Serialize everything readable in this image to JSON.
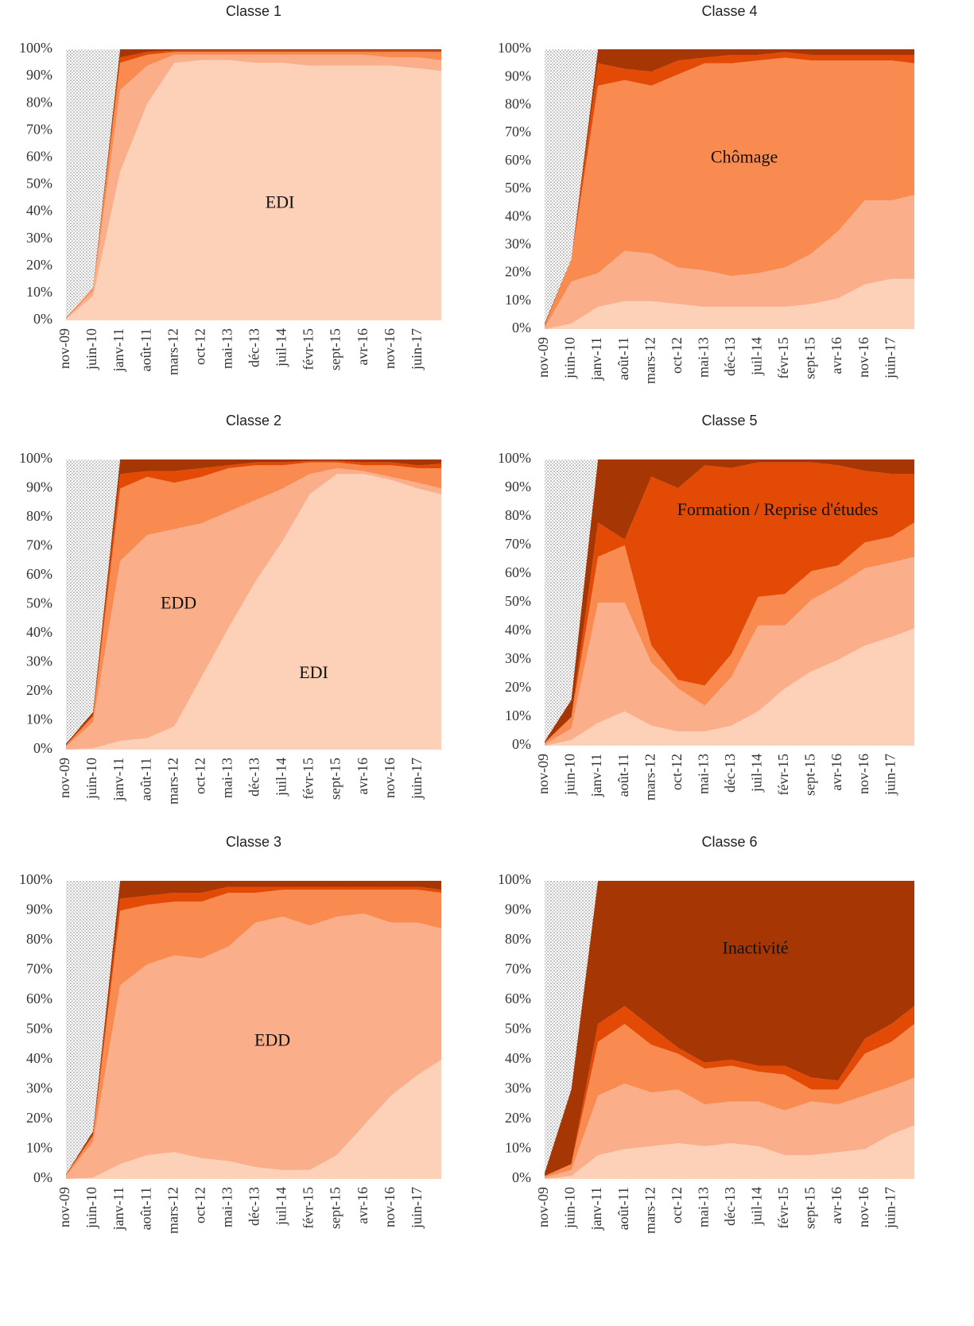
{
  "chart_data": [
    {
      "type": "stacked_area",
      "title": "Classe 1",
      "annotations": [
        "EDI"
      ],
      "categories": [
        "nov-09",
        "juin-10",
        "janv-11",
        "août-11",
        "mars-12",
        "oct-12",
        "mai-13",
        "déc-13",
        "juil-14",
        "févr-15",
        "sept-15",
        "avr-16",
        "nov-16",
        "juin-17",
        null
      ],
      "ylim": [
        0,
        100
      ],
      "yticks": [
        {
          "value": 0,
          "label": "0%"
        },
        {
          "value": 10,
          "label": "10%"
        },
        {
          "value": 20,
          "label": "20%"
        },
        {
          "value": 30,
          "label": "30%"
        },
        {
          "value": 40,
          "label": "40%"
        },
        {
          "value": 50,
          "label": "50%"
        },
        {
          "value": 60,
          "label": "60%"
        },
        {
          "value": 70,
          "label": "70%"
        },
        {
          "value": 80,
          "label": "80%"
        },
        {
          "value": 90,
          "label": "90%"
        },
        {
          "value": 100,
          "label": "100%"
        }
      ],
      "series": [
        {
          "color": "#fdd0b8",
          "values": [
            0.5,
            9,
            55,
            80,
            95,
            96,
            96,
            95,
            95,
            94,
            94,
            94,
            94,
            93,
            92
          ]
        },
        {
          "color": "#fbae8a",
          "values": [
            0.2,
            2,
            30,
            14,
            3,
            2,
            2,
            3,
            3,
            4,
            4,
            4,
            3,
            4,
            4
          ]
        },
        {
          "color": "#f98b50",
          "values": [
            0.2,
            1,
            10,
            4,
            1,
            1,
            1,
            1,
            1,
            1,
            1,
            1,
            2,
            2,
            3
          ]
        },
        {
          "color": "#e34a05",
          "values": [
            0,
            0,
            2,
            1,
            0.5,
            0.5,
            0.5,
            0.5,
            0.5,
            0.5,
            0.5,
            0.5,
            0.5,
            0.5,
            0.5
          ]
        },
        {
          "color": "#a63603",
          "values": [
            0.1,
            0,
            3,
            1,
            0.5,
            0.5,
            0.5,
            0.5,
            0.5,
            0.5,
            0.5,
            0.5,
            0.5,
            0.5,
            0.5
          ]
        }
      ]
    },
    {
      "type": "stacked_area",
      "title": "Classe 2",
      "annotations": [
        "EDD",
        "EDI"
      ],
      "categories": [
        "nov-09",
        "juin-10",
        "janv-11",
        "août-11",
        "mars-12",
        "oct-12",
        "mai-13",
        "déc-13",
        "juil-14",
        "févr-15",
        "sept-15",
        "avr-16",
        "nov-16",
        "juin-17",
        null
      ],
      "ylim": [
        0,
        100
      ],
      "yticks": [
        {
          "value": 0,
          "label": "0%"
        },
        {
          "value": 10,
          "label": "10%"
        },
        {
          "value": 20,
          "label": "20%"
        },
        {
          "value": 30,
          "label": "30%"
        },
        {
          "value": 40,
          "label": "40%"
        },
        {
          "value": 50,
          "label": "50%"
        },
        {
          "value": 60,
          "label": "60%"
        },
        {
          "value": 70,
          "label": "70%"
        },
        {
          "value": 80,
          "label": "80%"
        },
        {
          "value": 90,
          "label": "90%"
        },
        {
          "value": 100,
          "label": "100%"
        }
      ],
      "series": [
        {
          "color": "#fdd0b8",
          "values": [
            0,
            0.5,
            3,
            4,
            8,
            25,
            42,
            58,
            72,
            88,
            95,
            95,
            93,
            90,
            88
          ]
        },
        {
          "color": "#fbae8a",
          "values": [
            1,
            9,
            62,
            70,
            68,
            53,
            40,
            28,
            18,
            7,
            2,
            1,
            1,
            2,
            2
          ]
        },
        {
          "color": "#f98b50",
          "values": [
            0.5,
            2,
            25,
            20,
            16,
            16,
            15,
            12,
            8,
            4,
            2,
            2,
            4,
            5,
            7
          ]
        },
        {
          "color": "#e34a05",
          "values": [
            0,
            0.5,
            5,
            2,
            4,
            3,
            1,
            1,
            1,
            0.5,
            0.5,
            1,
            1,
            1,
            1.5
          ]
        },
        {
          "color": "#a63603",
          "values": [
            0.5,
            1,
            5,
            4,
            4,
            3,
            2,
            1,
            1,
            0.5,
            0.5,
            1,
            1,
            2,
            1.5
          ]
        }
      ]
    },
    {
      "type": "stacked_area",
      "title": "Classe 3",
      "annotations": [
        "EDD"
      ],
      "categories": [
        "nov-09",
        "juin-10",
        "janv-11",
        "août-11",
        "mars-12",
        "oct-12",
        "mai-13",
        "déc-13",
        "juil-14",
        "févr-15",
        "sept-15",
        "avr-16",
        "nov-16",
        "juin-17",
        null
      ],
      "ylim": [
        0,
        100
      ],
      "yticks": [
        {
          "value": 0,
          "label": "0%"
        },
        {
          "value": 10,
          "label": "10%"
        },
        {
          "value": 20,
          "label": "20%"
        },
        {
          "value": 30,
          "label": "30%"
        },
        {
          "value": 40,
          "label": "40%"
        },
        {
          "value": 50,
          "label": "50%"
        },
        {
          "value": 60,
          "label": "60%"
        },
        {
          "value": 70,
          "label": "70%"
        },
        {
          "value": 80,
          "label": "80%"
        },
        {
          "value": 90,
          "label": "90%"
        },
        {
          "value": 100,
          "label": "100%"
        }
      ],
      "series": [
        {
          "color": "#fdd0b8",
          "values": [
            0,
            0.5,
            5,
            8,
            9,
            7,
            6,
            4,
            3,
            3,
            8,
            18,
            28,
            35,
            40
          ]
        },
        {
          "color": "#fbae8a",
          "values": [
            1,
            12,
            60,
            64,
            66,
            67,
            72,
            82,
            85,
            82,
            80,
            71,
            58,
            51,
            44
          ]
        },
        {
          "color": "#f98b50",
          "values": [
            0.3,
            2,
            25,
            20,
            18,
            19,
            18,
            10,
            9,
            12,
            9,
            8,
            11,
            11,
            12
          ]
        },
        {
          "color": "#e34a05",
          "values": [
            0,
            0.5,
            4,
            3,
            3,
            3,
            2,
            2,
            1,
            1,
            1,
            1,
            1,
            1,
            1
          ]
        },
        {
          "color": "#a63603",
          "values": [
            0.2,
            1,
            6,
            5,
            4,
            4,
            2,
            2,
            2,
            2,
            2,
            2,
            2,
            2,
            3
          ]
        }
      ]
    },
    {
      "type": "stacked_area",
      "title": "Classe 4",
      "annotations": [
        "Chômage"
      ],
      "categories": [
        "nov-09",
        "juin-10",
        "janv-11",
        "août-11",
        "mars-12",
        "oct-12",
        "mai-13",
        "déc-13",
        "juil-14",
        "févr-15",
        "sept-15",
        "avr-16",
        "nov-16",
        "juin-17",
        null
      ],
      "ylim": [
        0,
        100
      ],
      "yticks": [
        {
          "value": 0,
          "label": "0%"
        },
        {
          "value": 10,
          "label": "10%"
        },
        {
          "value": 20,
          "label": "20%"
        },
        {
          "value": 30,
          "label": "30%"
        },
        {
          "value": 40,
          "label": "40%"
        },
        {
          "value": 50,
          "label": "50%"
        },
        {
          "value": 60,
          "label": "60%"
        },
        {
          "value": 70,
          "label": "70%"
        },
        {
          "value": 80,
          "label": "80%"
        },
        {
          "value": 90,
          "label": "90%"
        },
        {
          "value": 100,
          "label": "100%"
        }
      ],
      "series": [
        {
          "color": "#fdd0b8",
          "values": [
            0,
            2,
            8,
            10,
            10,
            9,
            8,
            8,
            8,
            8,
            9,
            11,
            16,
            18,
            18
          ]
        },
        {
          "color": "#fbae8a",
          "values": [
            0.5,
            15,
            12,
            18,
            17,
            13,
            13,
            11,
            12,
            14,
            18,
            24,
            30,
            28,
            30
          ]
        },
        {
          "color": "#f98b50",
          "values": [
            1,
            8,
            67,
            61,
            60,
            69,
            74,
            76,
            76,
            75,
            69,
            61,
            50,
            50,
            47
          ]
        },
        {
          "color": "#e34a05",
          "values": [
            0,
            0,
            8,
            4,
            5,
            5,
            2,
            3,
            2,
            2,
            2,
            2,
            2,
            2,
            3
          ]
        },
        {
          "color": "#a63603",
          "values": [
            0.5,
            0,
            5,
            7,
            8,
            4,
            3,
            2,
            2,
            1,
            2,
            2,
            2,
            2,
            2
          ]
        }
      ]
    },
    {
      "type": "stacked_area",
      "title": "Classe 5",
      "annotations": [
        "Formation / Reprise d'études"
      ],
      "categories": [
        "nov-09",
        "juin-10",
        "janv-11",
        "août-11",
        "mars-12",
        "oct-12",
        "mai-13",
        "déc-13",
        "juil-14",
        "févr-15",
        "sept-15",
        "avr-16",
        "nov-16",
        "juin-17",
        null
      ],
      "ylim": [
        0,
        100
      ],
      "yticks": [
        {
          "value": 0,
          "label": "0%"
        },
        {
          "value": 10,
          "label": "10%"
        },
        {
          "value": 20,
          "label": "20%"
        },
        {
          "value": 30,
          "label": "30%"
        },
        {
          "value": 40,
          "label": "40%"
        },
        {
          "value": 50,
          "label": "50%"
        },
        {
          "value": 60,
          "label": "60%"
        },
        {
          "value": 70,
          "label": "70%"
        },
        {
          "value": 80,
          "label": "80%"
        },
        {
          "value": 90,
          "label": "90%"
        },
        {
          "value": 100,
          "label": "100%"
        }
      ],
      "series": [
        {
          "color": "#fdd0b8",
          "values": [
            0,
            2,
            8,
            12,
            7,
            5,
            5,
            7,
            12,
            20,
            26,
            30,
            35,
            38,
            41
          ]
        },
        {
          "color": "#fbae8a",
          "values": [
            0.5,
            4,
            42,
            38,
            22,
            15,
            9,
            17,
            30,
            22,
            25,
            26,
            27,
            26,
            25
          ]
        },
        {
          "color": "#f98b50",
          "values": [
            0.5,
            4,
            16,
            20,
            6,
            3,
            7,
            8,
            10,
            11,
            10,
            7,
            9,
            9,
            12
          ]
        },
        {
          "color": "#e34a05",
          "values": [
            0,
            0,
            12,
            2,
            59,
            67,
            77,
            65,
            47,
            46,
            38,
            35,
            25,
            22,
            17
          ]
        },
        {
          "color": "#a63603",
          "values": [
            0.5,
            6,
            22,
            28,
            6,
            10,
            2,
            3,
            1,
            1,
            1,
            2,
            4,
            5,
            5
          ]
        }
      ]
    },
    {
      "type": "stacked_area",
      "title": "Classe 6",
      "annotations": [
        "Inactivité"
      ],
      "categories": [
        "nov-09",
        "juin-10",
        "janv-11",
        "août-11",
        "mars-12",
        "oct-12",
        "mai-13",
        "déc-13",
        "juil-14",
        "févr-15",
        "sept-15",
        "avr-16",
        "nov-16",
        "juin-17",
        null
      ],
      "ylim": [
        0,
        100
      ],
      "yticks": [
        {
          "value": 0,
          "label": "0%"
        },
        {
          "value": 10,
          "label": "10%"
        },
        {
          "value": 20,
          "label": "20%"
        },
        {
          "value": 30,
          "label": "30%"
        },
        {
          "value": 40,
          "label": "40%"
        },
        {
          "value": 50,
          "label": "50%"
        },
        {
          "value": 60,
          "label": "60%"
        },
        {
          "value": 70,
          "label": "70%"
        },
        {
          "value": 80,
          "label": "80%"
        },
        {
          "value": 90,
          "label": "90%"
        },
        {
          "value": 100,
          "label": "100%"
        }
      ],
      "series": [
        {
          "color": "#fdd0b8",
          "values": [
            0,
            1,
            8,
            10,
            11,
            12,
            11,
            12,
            11,
            8,
            8,
            9,
            10,
            15,
            18
          ]
        },
        {
          "color": "#fbae8a",
          "values": [
            0.5,
            2,
            20,
            22,
            18,
            18,
            14,
            14,
            15,
            15,
            18,
            16,
            18,
            16,
            16
          ]
        },
        {
          "color": "#f98b50",
          "values": [
            0.5,
            2,
            18,
            20,
            16,
            12,
            12,
            12,
            10,
            12,
            4,
            5,
            14,
            15,
            18
          ]
        },
        {
          "color": "#e34a05",
          "values": [
            0,
            0,
            6,
            6,
            6,
            2,
            2,
            2,
            2,
            3,
            4,
            3,
            5,
            6,
            6
          ]
        },
        {
          "color": "#a63603",
          "values": [
            1,
            25,
            48,
            42,
            49,
            56,
            61,
            60,
            62,
            62,
            66,
            67,
            53,
            48,
            42
          ]
        }
      ]
    }
  ]
}
